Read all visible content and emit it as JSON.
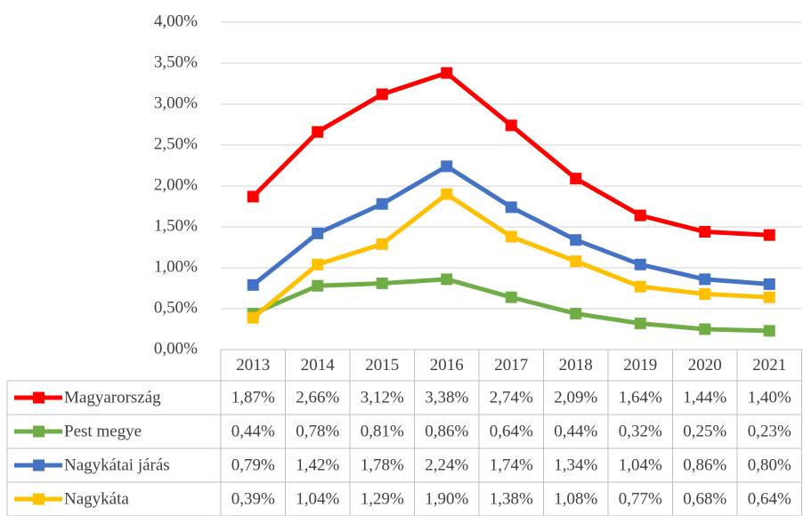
{
  "chart_data": {
    "type": "line",
    "categories": [
      "2013",
      "2014",
      "2015",
      "2016",
      "2017",
      "2018",
      "2019",
      "2020",
      "2021"
    ],
    "series": [
      {
        "name": "Magyarország",
        "color": "#ff0000",
        "values": [
          1.87,
          2.66,
          3.12,
          3.38,
          2.74,
          2.09,
          1.64,
          1.44,
          1.4
        ],
        "value_labels": [
          "1,87%",
          "2,66%",
          "3,12%",
          "3,38%",
          "2,74%",
          "2,09%",
          "1,64%",
          "1,44%",
          "1,40%"
        ]
      },
      {
        "name": "Pest megye",
        "color": "#70ad47",
        "values": [
          0.44,
          0.78,
          0.81,
          0.86,
          0.64,
          0.44,
          0.32,
          0.25,
          0.23
        ],
        "value_labels": [
          "0,44%",
          "0,78%",
          "0,81%",
          "0,86%",
          "0,64%",
          "0,44%",
          "0,32%",
          "0,25%",
          "0,23%"
        ]
      },
      {
        "name": "Nagykátai járás",
        "color": "#4472c4",
        "values": [
          0.79,
          1.42,
          1.78,
          2.24,
          1.74,
          1.34,
          1.04,
          0.86,
          0.8
        ],
        "value_labels": [
          "0,79%",
          "1,42%",
          "1,78%",
          "2,24%",
          "1,74%",
          "1,34%",
          "1,04%",
          "0,86%",
          "0,80%"
        ]
      },
      {
        "name": "Nagykáta",
        "color": "#ffc000",
        "values": [
          0.39,
          1.04,
          1.29,
          1.9,
          1.38,
          1.08,
          0.77,
          0.68,
          0.64
        ],
        "value_labels": [
          "0,39%",
          "1,04%",
          "1,29%",
          "1,90%",
          "1,38%",
          "1,08%",
          "0,77%",
          "0,68%",
          "0,64%"
        ]
      }
    ],
    "ylim": [
      0,
      4
    ],
    "yticks": [
      {
        "value": 0,
        "label": "0,00%"
      },
      {
        "value": 0.5,
        "label": "0,50%"
      },
      {
        "value": 1,
        "label": "1,00%"
      },
      {
        "value": 1.5,
        "label": "1,50%"
      },
      {
        "value": 2,
        "label": "2,00%"
      },
      {
        "value": 2.5,
        "label": "2,50%"
      },
      {
        "value": 3,
        "label": "3,00%"
      },
      {
        "value": 3.5,
        "label": "3,50%"
      },
      {
        "value": 4,
        "label": "4,00%"
      }
    ],
    "grid": true
  }
}
